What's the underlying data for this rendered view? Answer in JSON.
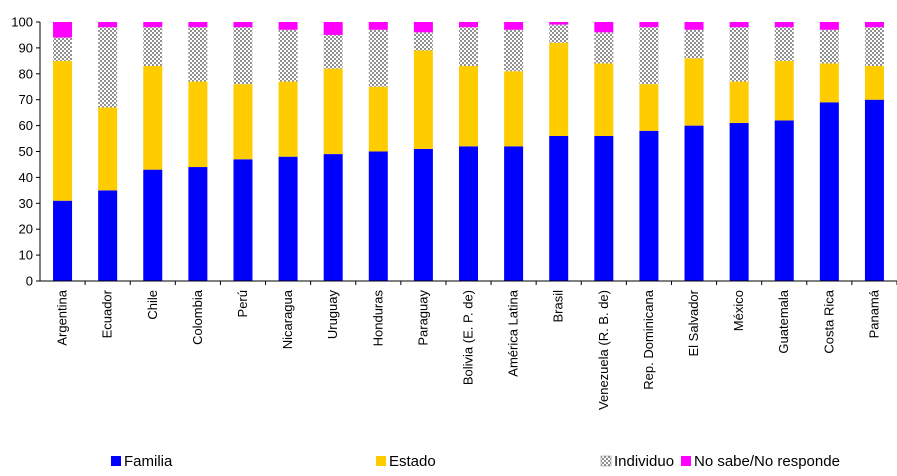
{
  "chart_data": {
    "type": "bar",
    "stacked": true,
    "title": "",
    "xlabel": "",
    "ylabel": "",
    "ylim": [
      0,
      100
    ],
    "yticks": [
      0,
      10,
      20,
      30,
      40,
      50,
      60,
      70,
      80,
      90,
      100
    ],
    "grid": false,
    "legend_position": "bottom",
    "categories": [
      "Argentina",
      "Ecuador",
      "Chile",
      "Colombia",
      "Perú",
      "Nicaragua",
      "Uruguay",
      "Honduras",
      "Paraguay",
      "Bolivia (E. P. de)",
      "América Latina",
      "Brasil",
      "Venezuela  (R. B. de)",
      "Rep. Dominicana",
      "El Salvador",
      "México",
      "Guatemala",
      "Costa Rica",
      "Panamá"
    ],
    "series": [
      {
        "name": "Familia",
        "color": "#0000ff",
        "pattern": "solid",
        "values": [
          31,
          35,
          43,
          44,
          47,
          48,
          49,
          50,
          51,
          52,
          52,
          56,
          56,
          58,
          60,
          61,
          62,
          69,
          70
        ]
      },
      {
        "name": "Estado",
        "color": "#ffcc00",
        "pattern": "solid",
        "values": [
          54,
          32,
          40,
          33,
          29,
          29,
          33,
          25,
          38,
          31,
          29,
          36,
          28,
          18,
          26,
          16,
          23,
          15,
          13
        ]
      },
      {
        "name": "Individuo",
        "color": "#c0c0c0",
        "pattern": "checker",
        "values": [
          9,
          31,
          15,
          21,
          22,
          20,
          13,
          22,
          7,
          15,
          16,
          7,
          12,
          22,
          11,
          21,
          13,
          13,
          15
        ]
      },
      {
        "name": "No sabe/No responde",
        "color": "#ff00ff",
        "pattern": "solid",
        "values": [
          6,
          2,
          2,
          2,
          2,
          3,
          5,
          3,
          4,
          2,
          3,
          1,
          4,
          2,
          3,
          2,
          2,
          3,
          2
        ]
      }
    ]
  }
}
